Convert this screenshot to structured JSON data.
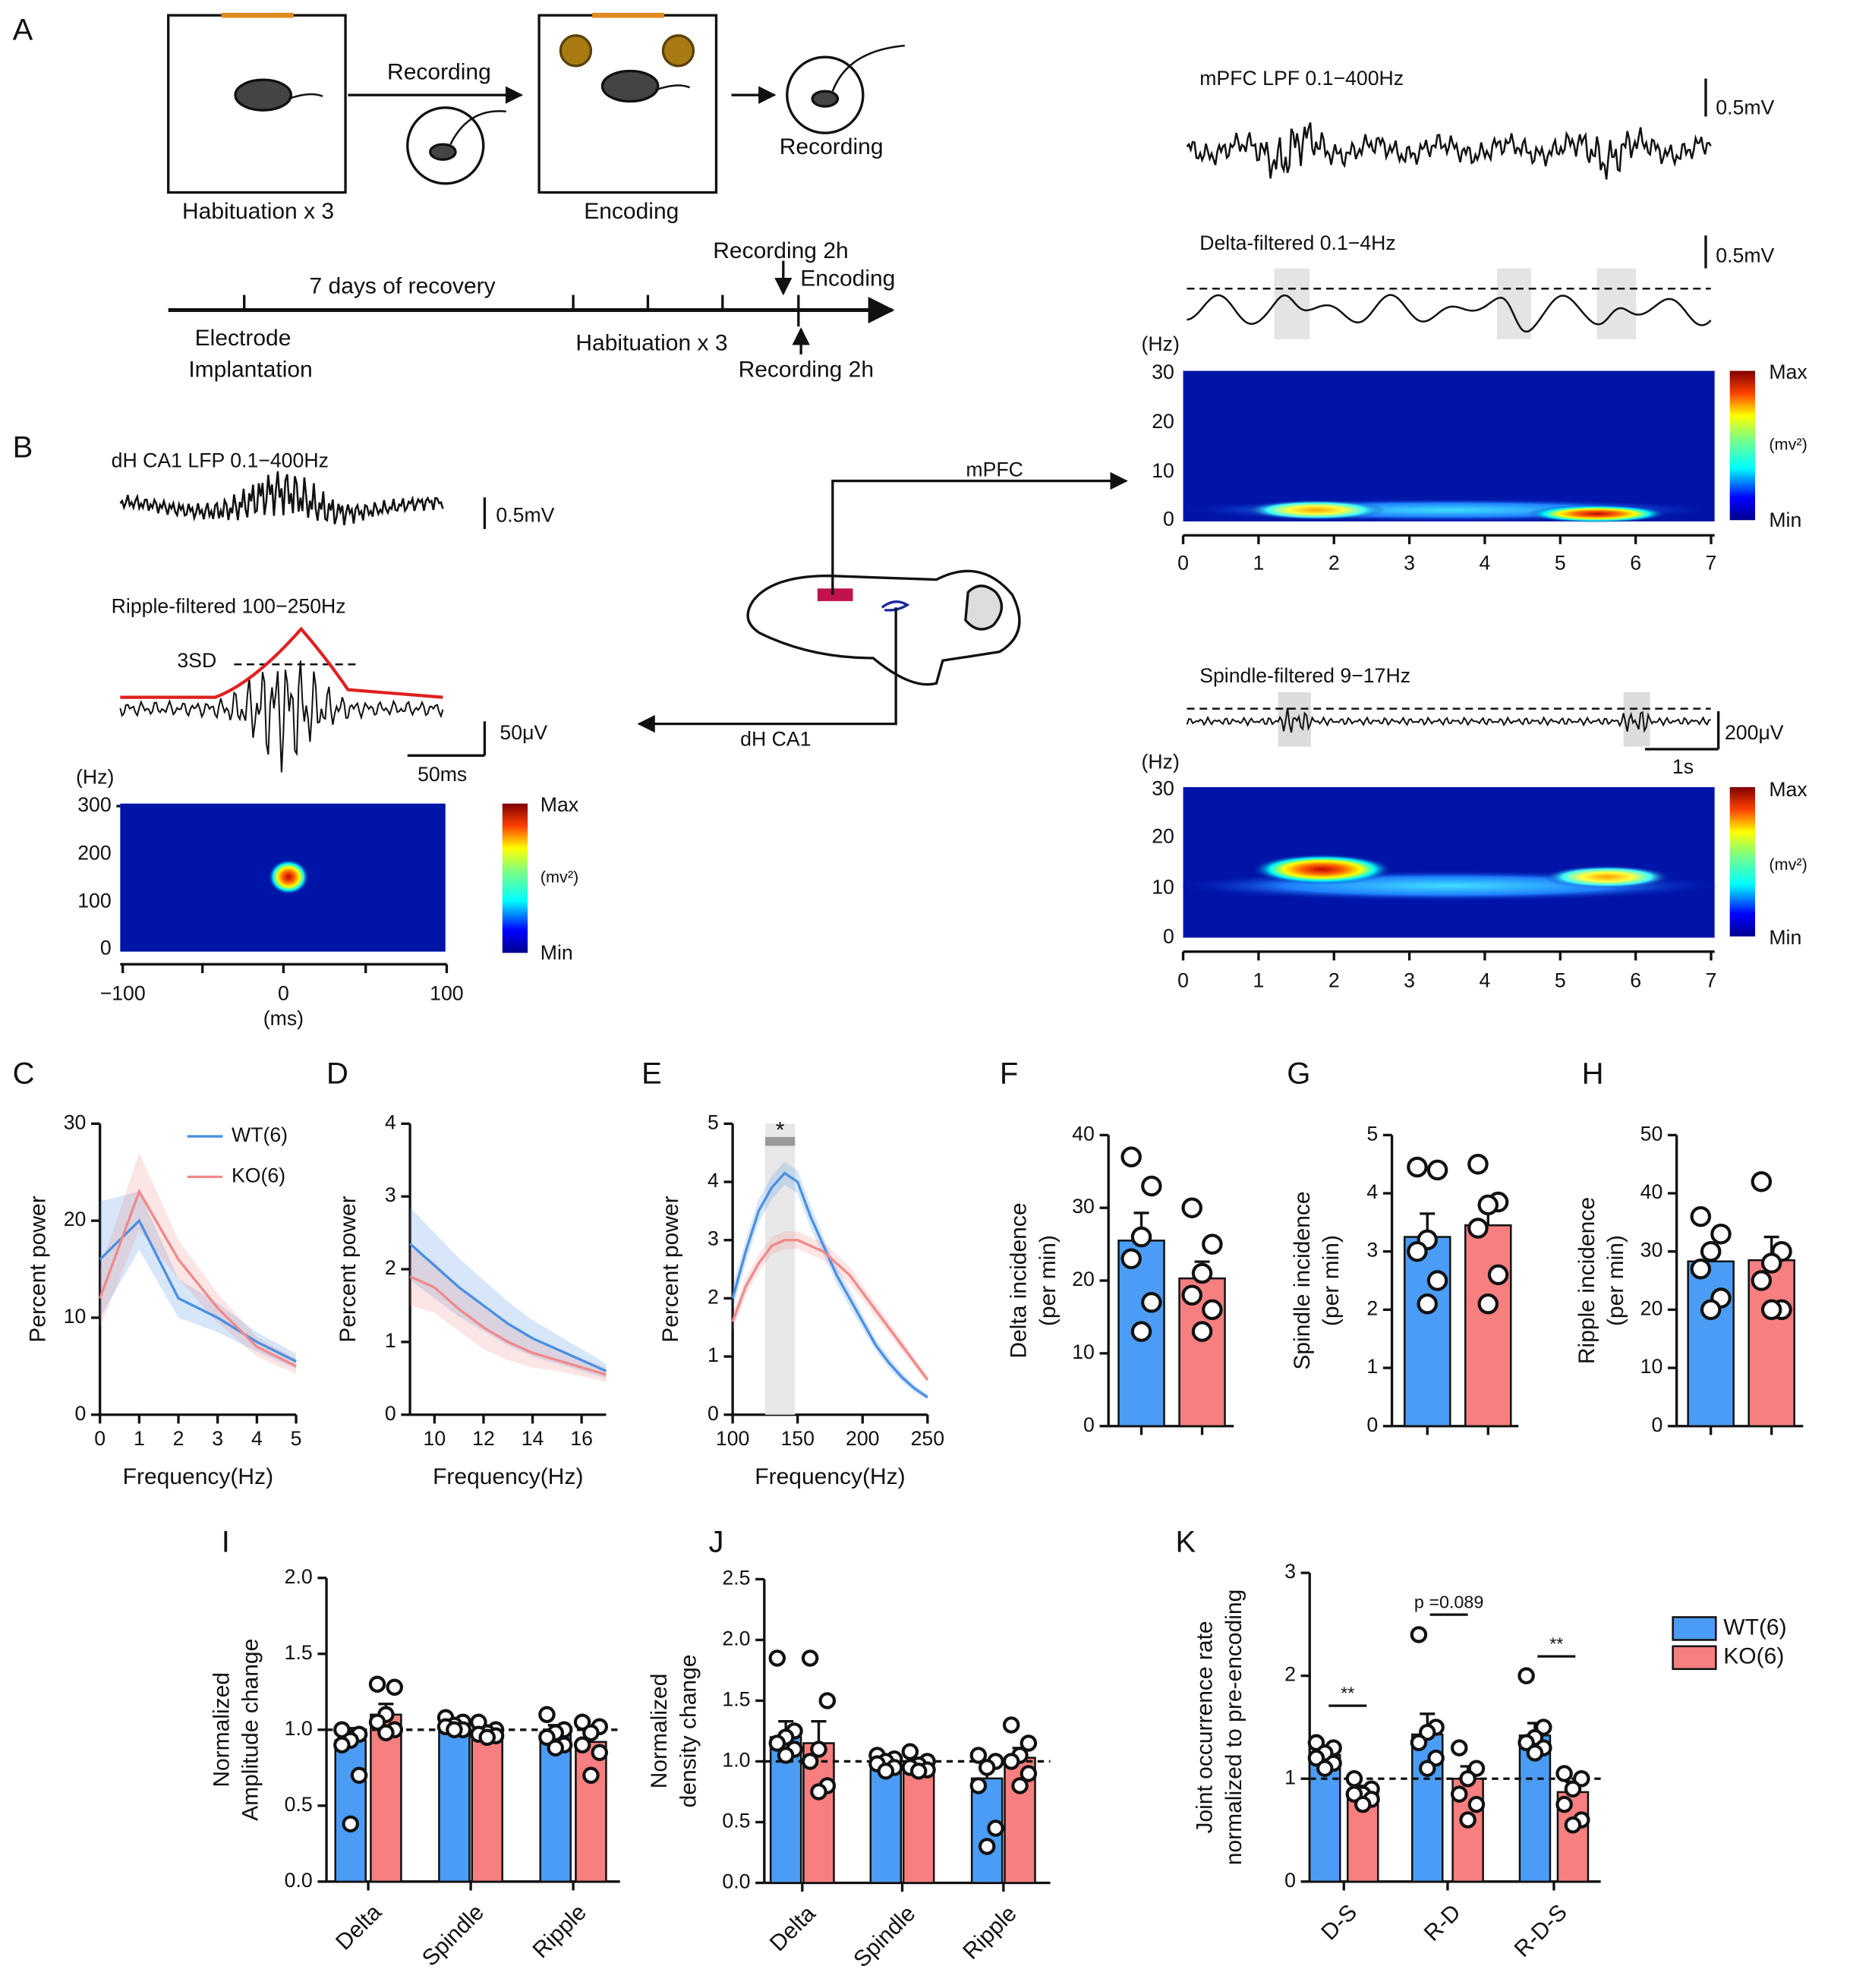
{
  "diagram": {
    "panel_a": "A",
    "panel_b": "B",
    "a": {
      "habituation": "Habituation x 3",
      "recording_arrow": "Recording",
      "encoding": "Encoding",
      "recording_after": "Recording",
      "recovery": "7 days of recovery",
      "electrode": [
        "Electrode",
        "Implantation"
      ],
      "habituation_timeline": "Habituation x 3",
      "rec_top": "Recording 2h",
      "encoding_timeline": "Encoding",
      "rec_bottom": "Recording 2h"
    },
    "b": {
      "ca1_lfp": "dH CA1 LFP 0.1−400Hz",
      "scale_mv": "0.5mV",
      "ripple": "Ripple-filtered  100−250Hz",
      "sd": "3SD",
      "scale_uv": "50μV",
      "scale_ms": "50ms",
      "hz": "(Hz)",
      "yticks": [
        "300",
        "200",
        "100",
        "0"
      ],
      "xticks": [
        "−100",
        "0",
        "100"
      ],
      "ms": "(ms)",
      "max": "Max",
      "unit": "(mv²)",
      "min": "Min",
      "mpfc_arrow": "mPFC",
      "ca1_arrow": "dH CA1"
    },
    "mpfc": {
      "lpf": "mPFC LPF 0.1−400Hz",
      "scale1": "0.5mV",
      "delta": "Delta-filtered 0.1−4Hz",
      "scale2": "0.5mV",
      "hz": "(Hz)",
      "yticks": [
        "30",
        "20",
        "10",
        "0"
      ],
      "xticks": [
        "0",
        "1",
        "2",
        "3",
        "4",
        "5",
        "6",
        "7"
      ],
      "max": "Max",
      "unit": "(mv²)",
      "min": "Min",
      "spindle": "Spindle-filtered 9−17Hz",
      "scale3": "200μV",
      "scale4": "1s",
      "hz2": "(Hz)",
      "yticks2": [
        "30",
        "20",
        "10",
        "0"
      ],
      "xticks2": [
        "0",
        "1",
        "2",
        "3",
        "4",
        "5",
        "6",
        "7"
      ],
      "max2": "Max",
      "unit2": "(mv²)",
      "min2": "Min"
    }
  },
  "chart_data": [
    {
      "type": "line",
      "panel": "C",
      "x": [
        0,
        1,
        2,
        3,
        4,
        5
      ],
      "xlim": [
        0,
        5
      ],
      "xticks": [
        0,
        1,
        2,
        3,
        4,
        5
      ],
      "ylim": [
        0,
        30
      ],
      "yticks": [
        0,
        10,
        20,
        30
      ],
      "xlabel": "Frequency(Hz)",
      "ylabel": "Percent power",
      "series": [
        {
          "name": "WT(6)",
          "color": "#4a90e2",
          "values": [
            16,
            20,
            12,
            10,
            7.5,
            5.5
          ],
          "errors": [
            6,
            3,
            2,
            1.5,
            1,
            0.8
          ]
        },
        {
          "name": "KO(6)",
          "color": "#ef8a8a",
          "values": [
            12,
            23,
            16,
            11,
            7,
            5
          ],
          "errors": [
            3,
            4,
            2,
            1.5,
            1,
            0.8
          ]
        }
      ]
    },
    {
      "type": "line",
      "panel": "D",
      "x": [
        9,
        10,
        11,
        12,
        13,
        14,
        15,
        16,
        17
      ],
      "xlim": [
        9,
        17
      ],
      "xticks": [
        10,
        12,
        14,
        16
      ],
      "ylim": [
        0,
        4
      ],
      "yticks": [
        0,
        1,
        2,
        3,
        4
      ],
      "xlabel": "Frequency(Hz)",
      "ylabel": "Percent power",
      "series": [
        {
          "color": "#4a90e2",
          "values": [
            2.35,
            2.05,
            1.75,
            1.5,
            1.25,
            1.05,
            0.9,
            0.75,
            0.6
          ],
          "errors": [
            0.5,
            0.45,
            0.4,
            0.35,
            0.3,
            0.25,
            0.2,
            0.15,
            0.1
          ]
        },
        {
          "color": "#ef8a8a",
          "values": [
            1.9,
            1.75,
            1.45,
            1.2,
            1.0,
            0.85,
            0.75,
            0.65,
            0.55
          ],
          "errors": [
            0.4,
            0.35,
            0.3,
            0.3,
            0.25,
            0.2,
            0.15,
            0.12,
            0.1
          ]
        }
      ]
    },
    {
      "type": "line",
      "panel": "E",
      "x": [
        100,
        110,
        120,
        130,
        140,
        150,
        160,
        170,
        180,
        190,
        200,
        210,
        220,
        230,
        240,
        250
      ],
      "xlim": [
        100,
        250
      ],
      "xticks": [
        100,
        150,
        200,
        250
      ],
      "ylim": [
        0,
        5
      ],
      "yticks": [
        0,
        1,
        2,
        3,
        4,
        5
      ],
      "xlabel": "Frequency(Hz)",
      "ylabel": "Percent power",
      "highlight": [
        125,
        148
      ],
      "annotation": "*",
      "series": [
        {
          "color": "#4a90e2",
          "values": [
            2.0,
            2.8,
            3.5,
            3.9,
            4.15,
            4.0,
            3.4,
            2.9,
            2.4,
            2.0,
            1.6,
            1.2,
            0.9,
            0.65,
            0.45,
            0.3
          ],
          "errors": [
            0.2,
            0.2,
            0.2,
            0.2,
            0.2,
            0.2,
            0.2,
            0.15,
            0.15,
            0.15,
            0.12,
            0.1,
            0.1,
            0.08,
            0.06,
            0.05
          ]
        },
        {
          "color": "#ef8a8a",
          "values": [
            1.6,
            2.2,
            2.6,
            2.9,
            3.0,
            3.0,
            2.9,
            2.8,
            2.6,
            2.4,
            2.1,
            1.8,
            1.5,
            1.2,
            0.9,
            0.6
          ],
          "errors": [
            0.15,
            0.15,
            0.15,
            0.15,
            0.15,
            0.15,
            0.15,
            0.15,
            0.15,
            0.15,
            0.12,
            0.12,
            0.1,
            0.1,
            0.08,
            0.06
          ]
        }
      ]
    },
    {
      "type": "bar",
      "panel": "F",
      "ylim": [
        0,
        40
      ],
      "yticks": [
        0,
        10,
        20,
        30,
        40
      ],
      "ylabel": [
        "Delta incidence",
        "(per min)"
      ],
      "values": [
        25.5,
        20.3
      ],
      "errors": [
        3.8,
        2.3
      ],
      "colors": [
        "#4b9cf5",
        "#f77f7f"
      ],
      "points": [
        [
          37,
          33,
          26,
          23,
          17,
          13
        ],
        [
          30,
          25,
          21,
          18,
          16,
          13
        ]
      ]
    },
    {
      "type": "bar",
      "panel": "G",
      "ylim": [
        0,
        5
      ],
      "yticks": [
        0,
        1,
        2,
        3,
        4,
        5
      ],
      "ylabel": [
        "Spindle incidence",
        "(per min)"
      ],
      "values": [
        3.25,
        3.45
      ],
      "errors": [
        0.4,
        0.35
      ],
      "colors": [
        "#4b9cf5",
        "#f77f7f"
      ],
      "points": [
        [
          4.45,
          4.4,
          3.2,
          3.0,
          2.5,
          2.1
        ],
        [
          4.5,
          3.85,
          3.8,
          3.4,
          2.6,
          2.1
        ]
      ]
    },
    {
      "type": "bar",
      "panel": "H",
      "ylim": [
        0,
        50
      ],
      "yticks": [
        0,
        10,
        20,
        30,
        40,
        50
      ],
      "ylabel": [
        "Ripple incidence",
        "(per min)"
      ],
      "values": [
        28.3,
        28.5
      ],
      "errors": [
        2.7,
        4.0
      ],
      "colors": [
        "#4b9cf5",
        "#f77f7f"
      ],
      "points": [
        [
          36,
          33,
          30,
          27,
          22,
          20
        ],
        [
          42,
          30,
          28,
          25,
          20,
          20
        ]
      ]
    },
    {
      "type": "bar",
      "panel": "I",
      "ylim": [
        0,
        2
      ],
      "yticks": [
        {
          "value": 0,
          "label": "0.0"
        },
        {
          "value": 0.5,
          "label": "0.5"
        },
        {
          "value": 1,
          "label": "1.0"
        },
        {
          "value": 1.5,
          "label": "1.5"
        },
        {
          "value": 2,
          "label": "2.0"
        }
      ],
      "ylabel": [
        "Normalized",
        "Amplitude change"
      ],
      "reference_line": 1,
      "categories": [
        "Delta",
        "Spindle",
        "Ripple"
      ],
      "series": [
        {
          "color": "#4b9cf5",
          "values": [
            0.93,
            1.03,
            0.98
          ],
          "errors": [
            0.08,
            0.02,
            0.05
          ],
          "points": [
            [
              1.0,
              0.97,
              0.93,
              0.9,
              0.7,
              0.38
            ],
            [
              1.08,
              1.05,
              1.03,
              1.02,
              1.0,
              1.0
            ],
            [
              1.1,
              1.0,
              0.98,
              0.95,
              0.9,
              0.88
            ]
          ]
        },
        {
          "color": "#f77f7f",
          "values": [
            1.1,
            0.98,
            0.92
          ],
          "errors": [
            0.07,
            0.02,
            0.06
          ],
          "points": [
            [
              1.3,
              1.28,
              1.1,
              1.05,
              1.0,
              0.98
            ],
            [
              1.05,
              1.0,
              0.98,
              0.97,
              0.96,
              0.95
            ],
            [
              1.05,
              1.02,
              0.98,
              0.9,
              0.85,
              0.7
            ]
          ]
        }
      ]
    },
    {
      "type": "bar",
      "panel": "J",
      "ylim": [
        0,
        2.5
      ],
      "yticks": [
        {
          "value": 0,
          "label": "0.0"
        },
        {
          "value": 0.5,
          "label": "0.5"
        },
        {
          "value": 1,
          "label": "1.0"
        },
        {
          "value": 1.5,
          "label": "1.5"
        },
        {
          "value": 2,
          "label": "2.0"
        },
        {
          "value": 2.5,
          "label": "2.5"
        }
      ],
      "ylabel": [
        "Normalized",
        "density change"
      ],
      "reference_line": 1,
      "categories": [
        "Delta",
        "Spindle",
        "Ripple"
      ],
      "series": [
        {
          "color": "#4b9cf5",
          "values": [
            1.2,
            1.0,
            0.86
          ],
          "errors": [
            0.13,
            0.04,
            0.12
          ],
          "points": [
            [
              1.85,
              1.25,
              1.2,
              1.15,
              1.1,
              1.05
            ],
            [
              1.05,
              1.02,
              1.0,
              0.98,
              0.95,
              0.92
            ],
            [
              1.05,
              1.0,
              0.95,
              0.8,
              0.45,
              0.3
            ]
          ]
        },
        {
          "color": "#f77f7f",
          "values": [
            1.15,
            0.97,
            1.03
          ],
          "errors": [
            0.18,
            0.03,
            0.08
          ],
          "points": [
            [
              1.85,
              1.5,
              1.1,
              1.0,
              0.8,
              0.75
            ],
            [
              1.08,
              1.0,
              0.97,
              0.95,
              0.93,
              0.92
            ],
            [
              1.3,
              1.15,
              1.05,
              1.0,
              0.9,
              0.8
            ]
          ]
        }
      ]
    },
    {
      "type": "bar",
      "panel": "K",
      "ylim": [
        0,
        3
      ],
      "yticks": [
        0,
        1,
        2,
        3
      ],
      "ylabel": [
        "Joint occurrence rate",
        "normalized to pre-encoding"
      ],
      "reference_line": 1,
      "categories": [
        "D-S",
        "R-D",
        "R-D-S"
      ],
      "annotations": [
        "**",
        "p =0.089",
        "**"
      ],
      "series": [
        {
          "name": "WT(6)",
          "color": "#4b9cf5",
          "values": [
            1.23,
            1.43,
            1.42
          ],
          "errors": [
            0.08,
            0.2,
            0.12
          ],
          "points": [
            [
              1.35,
              1.3,
              1.25,
              1.2,
              1.15,
              1.1
            ],
            [
              2.4,
              1.5,
              1.45,
              1.35,
              1.2,
              1.1
            ],
            [
              2.0,
              1.5,
              1.4,
              1.35,
              1.3,
              1.25
            ]
          ]
        },
        {
          "name": "KO(6)",
          "color": "#f77f7f",
          "values": [
            0.87,
            1.0,
            0.87
          ],
          "errors": [
            0.06,
            0.12,
            0.1
          ],
          "points": [
            [
              1.0,
              0.9,
              0.85,
              0.85,
              0.8,
              0.75
            ],
            [
              1.3,
              1.1,
              1.0,
              0.85,
              0.75,
              0.6
            ],
            [
              1.05,
              1.0,
              0.9,
              0.75,
              0.6,
              0.55
            ]
          ]
        }
      ]
    }
  ]
}
